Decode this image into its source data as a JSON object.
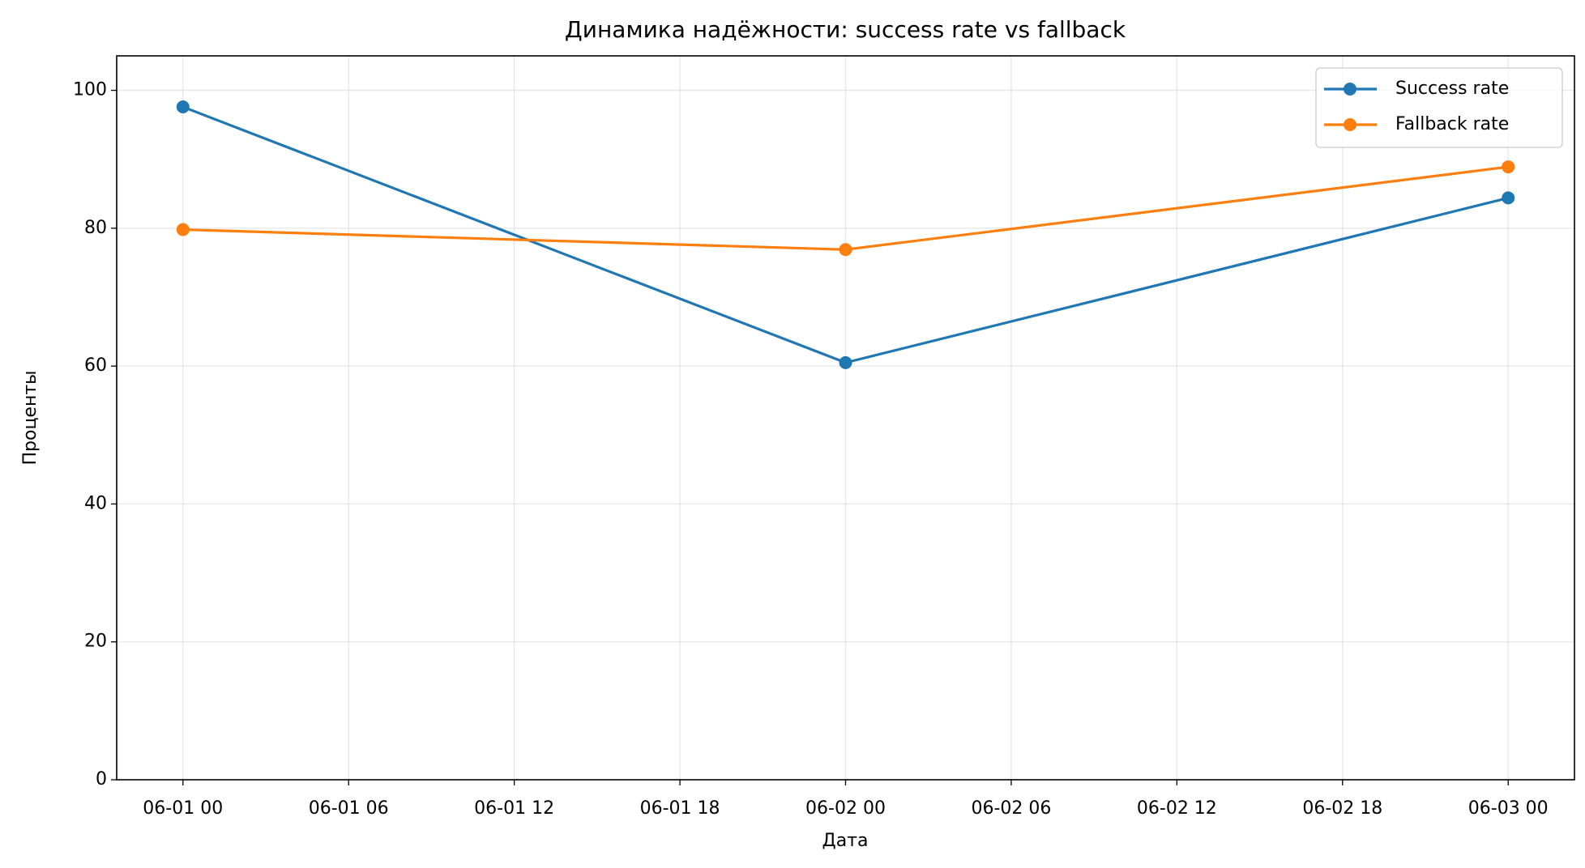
{
  "chart_data": {
    "type": "line",
    "title": "Динамика надёжности: success rate vs fallback",
    "x_label": "Дата",
    "y_label": "Проценты",
    "x": [
      "06-01 00",
      "06-02 00",
      "06-03 00"
    ],
    "series": [
      {
        "name": "Success rate",
        "color": "#1f77b4",
        "values": [
          97.6,
          60.5,
          84.4
        ]
      },
      {
        "name": "Fallback rate",
        "color": "#ff7f0e",
        "values": [
          79.8,
          76.9,
          88.9
        ]
      }
    ],
    "xlim": [
      "05-31 21:36",
      "06-03 02:24"
    ],
    "xticks": [
      "06-01 00",
      "06-01 06",
      "06-01 12",
      "06-01 18",
      "06-02 00",
      "06-02 06",
      "06-02 12",
      "06-02 18",
      "06-03 00"
    ],
    "ylim": [
      0,
      105
    ],
    "yticks": [
      0,
      20,
      40,
      60,
      80,
      100
    ],
    "grid": true,
    "legend": "upper right"
  }
}
